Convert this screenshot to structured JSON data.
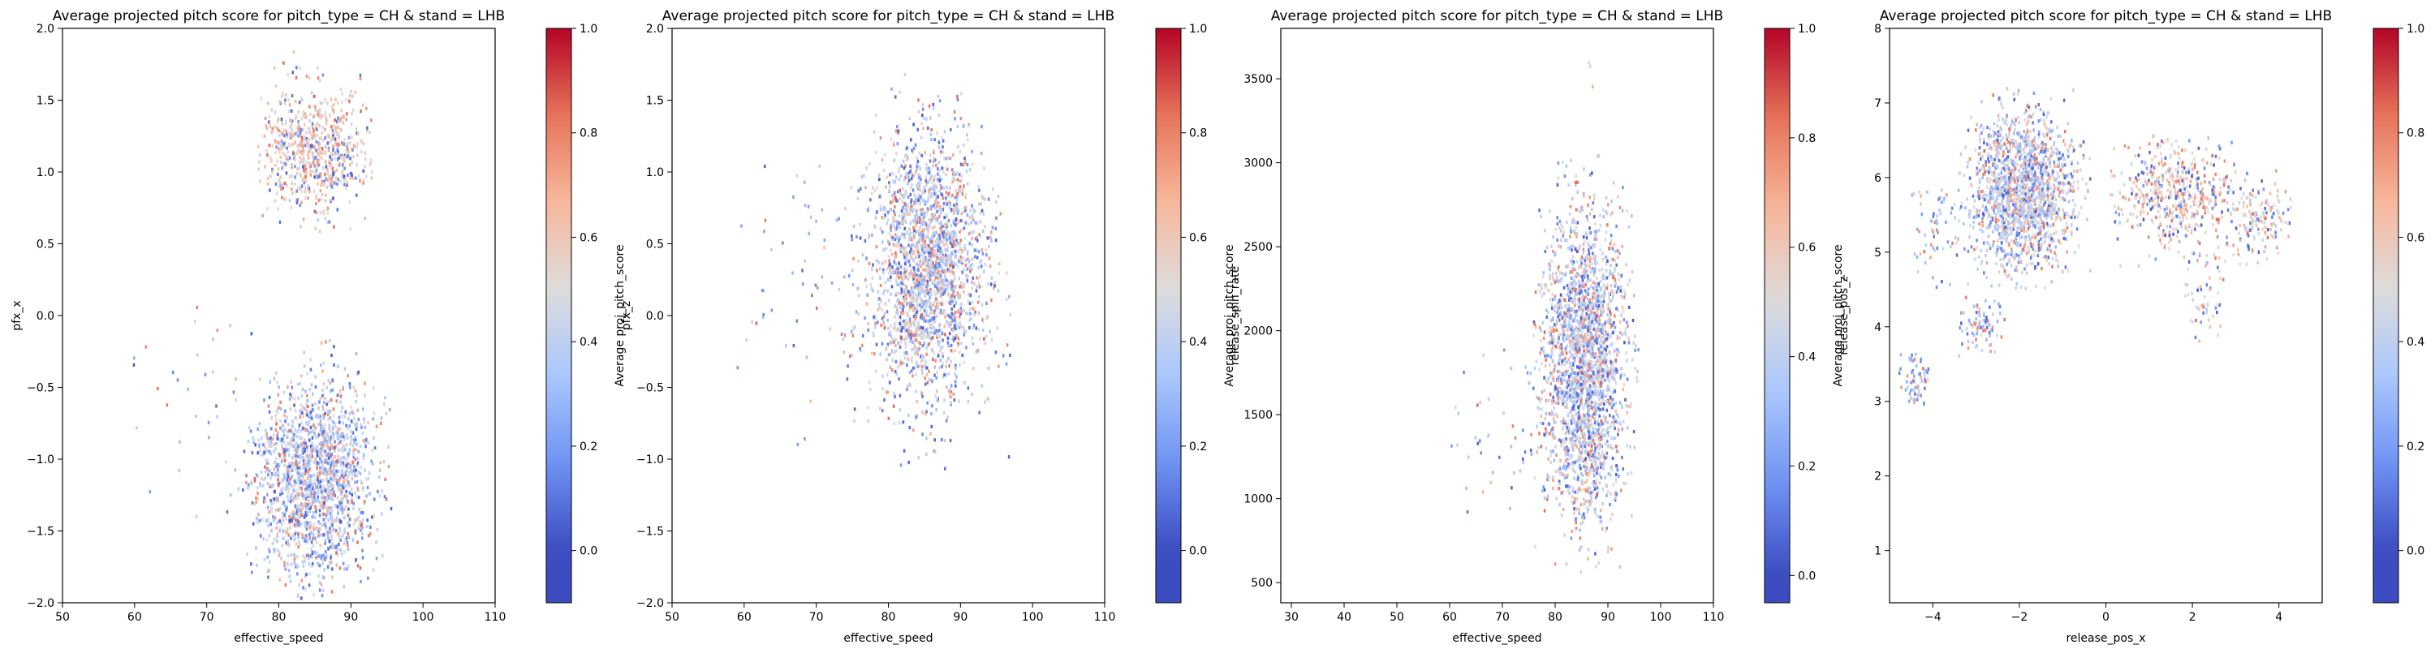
{
  "figure": {
    "background": "#ffffff"
  },
  "colormap": {
    "name": "coolwarm",
    "stops": [
      "#3b4cc0",
      "#6f92f3",
      "#aac7fd",
      "#dddcdc",
      "#f7b89c",
      "#e7745b",
      "#b40426"
    ]
  },
  "chart_data": [
    {
      "type": "heatmap",
      "title": "Average projected pitch score for pitch_type = CH & stand = LHB",
      "xlabel": "effective_speed",
      "ylabel": "pfx_x",
      "colorbar_label": "Average proj_pitch_score",
      "xlim": [
        50,
        110
      ],
      "ylim": [
        -2.0,
        2.0
      ],
      "xticks": [
        50,
        60,
        70,
        80,
        90,
        100,
        110
      ],
      "xtick_labels": [
        "50",
        "60",
        "70",
        "80",
        "90",
        "100",
        "110"
      ],
      "yticks": [
        -2.0,
        -1.5,
        -1.0,
        -0.5,
        0.0,
        0.5,
        1.0,
        1.5,
        2.0
      ],
      "ytick_labels": [
        "−2.0",
        "−1.5",
        "−1.0",
        "−0.5",
        "0.0",
        "0.5",
        "1.0",
        "1.5",
        "2.0"
      ],
      "cbar_range": [
        -0.1,
        1.0
      ],
      "cbar_ticks": [
        0.0,
        0.2,
        0.4,
        0.6,
        0.8,
        1.0
      ],
      "cbar_tick_labels": [
        "0.0",
        "0.2",
        "0.4",
        "0.6",
        "0.8",
        "1.0"
      ],
      "clusters": [
        {
          "center": [
            85,
            1.15
          ],
          "spread": [
            4,
            0.22
          ],
          "extent": [
            [
              77,
              93
            ],
            [
              0.55,
              1.95
            ]
          ],
          "count": 700,
          "mean_value": 0.55
        },
        {
          "center": [
            85,
            -1.15
          ],
          "spread": [
            4,
            0.35
          ],
          "extent": [
            [
              72,
              96
            ],
            [
              -2.0,
              -0.05
            ]
          ],
          "count": 1700,
          "mean_value": 0.4
        },
        {
          "center": [
            74,
            -0.6
          ],
          "spread": [
            8,
            0.5
          ],
          "extent": [
            [
              58,
              80
            ],
            [
              -1.4,
              0.1
            ]
          ],
          "count": 40,
          "mean_value": 0.3
        }
      ]
    },
    {
      "type": "heatmap",
      "title": "Average projected pitch score for pitch_type = CH & stand = LHB",
      "xlabel": "effective_speed",
      "ylabel": "pfx_z",
      "colorbar_label": "Average proj_pitch_score",
      "xlim": [
        50,
        110
      ],
      "ylim": [
        -2.0,
        2.0
      ],
      "xticks": [
        50,
        60,
        70,
        80,
        90,
        100,
        110
      ],
      "xtick_labels": [
        "50",
        "60",
        "70",
        "80",
        "90",
        "100",
        "110"
      ],
      "yticks": [
        -2.0,
        -1.5,
        -1.0,
        -0.5,
        0.0,
        0.5,
        1.0,
        1.5,
        2.0
      ],
      "ytick_labels": [
        "−2.0",
        "−1.5",
        "−1.0",
        "−0.5",
        "0.0",
        "0.5",
        "1.0",
        "1.5",
        "2.0"
      ],
      "cbar_range": [
        -0.1,
        1.0
      ],
      "cbar_ticks": [
        0.0,
        0.2,
        0.4,
        0.6,
        0.8,
        1.0
      ],
      "cbar_tick_labels": [
        "0.0",
        "0.2",
        "0.4",
        "0.6",
        "0.8",
        "1.0"
      ],
      "clusters": [
        {
          "center": [
            85.5,
            0.35
          ],
          "spread": [
            4,
            0.45
          ],
          "extent": [
            [
              73,
              97
            ],
            [
              -1.2,
              1.7
            ]
          ],
          "count": 2200,
          "mean_value": 0.42
        },
        {
          "center": [
            70,
            0.3
          ],
          "spread": [
            7,
            0.5
          ],
          "extent": [
            [
              58,
              78
            ],
            [
              -1.3,
              1.3
            ]
          ],
          "count": 60,
          "mean_value": 0.3
        }
      ]
    },
    {
      "type": "heatmap",
      "title": "Average projected pitch score for pitch_type = CH & stand = LHB",
      "xlabel": "effective_speed",
      "ylabel": "release_spin_rate",
      "colorbar_label": "Average proj_pitch_score",
      "xlim": [
        28,
        110
      ],
      "ylim": [
        380,
        3800
      ],
      "xticks": [
        30,
        40,
        50,
        60,
        70,
        80,
        90,
        100,
        110
      ],
      "xtick_labels": [
        "30",
        "40",
        "50",
        "60",
        "70",
        "80",
        "90",
        "100",
        "110"
      ],
      "yticks": [
        500,
        1000,
        1500,
        2000,
        2500,
        3000,
        3500
      ],
      "ytick_labels": [
        "500",
        "1000",
        "1500",
        "2000",
        "2500",
        "3000",
        "3500"
      ],
      "cbar_range": [
        -0.05,
        1.0
      ],
      "cbar_ticks": [
        0.0,
        0.2,
        0.4,
        0.6,
        0.8,
        1.0
      ],
      "cbar_tick_labels": [
        "0.0",
        "0.2",
        "0.4",
        "0.6",
        "0.8",
        "1.0"
      ],
      "clusters": [
        {
          "center": [
            85.5,
            1800
          ],
          "spread": [
            4,
            450
          ],
          "extent": [
            [
              75,
              96
            ],
            [
              550,
              3050
            ]
          ],
          "count": 2300,
          "mean_value": 0.42
        },
        {
          "center": [
            70,
            1300
          ],
          "spread": [
            7,
            300
          ],
          "extent": [
            [
              60,
              77
            ],
            [
              900,
              2000
            ]
          ],
          "count": 40,
          "mean_value": 0.35
        },
        {
          "center": [
            87,
            3500
          ],
          "spread": [
            0.5,
            80
          ],
          "extent": [
            [
              86,
              88
            ],
            [
              3400,
              3620
            ]
          ],
          "count": 3,
          "mean_value": 0.5
        }
      ]
    },
    {
      "type": "heatmap",
      "title": "Average projected pitch score for pitch_type = CH & stand = LHB",
      "xlabel": "release_pos_x",
      "ylabel": "release_pos_z",
      "colorbar_label": "Average proj_pitch_score",
      "xlim": [
        -5.0,
        5.0
      ],
      "ylim": [
        0.3,
        8.0
      ],
      "xticks": [
        -4,
        -2,
        0,
        2,
        4
      ],
      "xtick_labels": [
        "−4",
        "−2",
        "0",
        "2",
        "4"
      ],
      "yticks": [
        1,
        2,
        3,
        4,
        5,
        6,
        7,
        8
      ],
      "ytick_labels": [
        "1",
        "2",
        "3",
        "4",
        "5",
        "6",
        "7",
        "8"
      ],
      "cbar_range": [
        -0.1,
        1.0
      ],
      "cbar_ticks": [
        0.0,
        0.2,
        0.4,
        0.6,
        0.8,
        1.0
      ],
      "cbar_tick_labels": [
        "0.0",
        "0.2",
        "0.4",
        "0.6",
        "0.8",
        "1.0"
      ],
      "clusters": [
        {
          "center": [
            -1.9,
            5.8
          ],
          "spread": [
            0.6,
            0.55
          ],
          "extent": [
            [
              -3.5,
              -0.3
            ],
            [
              4.5,
              7.2
            ]
          ],
          "count": 1600,
          "mean_value": 0.42
        },
        {
          "center": [
            1.6,
            5.8
          ],
          "spread": [
            0.7,
            0.35
          ],
          "extent": [
            [
              0.1,
              3.2
            ],
            [
              4.8,
              6.6
            ]
          ],
          "count": 500,
          "mean_value": 0.55
        },
        {
          "center": [
            3.5,
            5.5
          ],
          "spread": [
            0.4,
            0.3
          ],
          "extent": [
            [
              2.8,
              4.3
            ],
            [
              4.7,
              6.2
            ]
          ],
          "count": 150,
          "mean_value": 0.5
        },
        {
          "center": [
            -2.9,
            4.0
          ],
          "spread": [
            0.3,
            0.2
          ],
          "extent": [
            [
              -3.4,
              -2.3
            ],
            [
              3.6,
              4.4
            ]
          ],
          "count": 80,
          "mean_value": 0.35
        },
        {
          "center": [
            -4.4,
            3.3
          ],
          "spread": [
            0.2,
            0.2
          ],
          "extent": [
            [
              -4.8,
              -3.9
            ],
            [
              2.9,
              3.8
            ]
          ],
          "count": 60,
          "mean_value": 0.3
        },
        {
          "center": [
            -4.0,
            5.4
          ],
          "spread": [
            0.3,
            0.4
          ],
          "extent": [
            [
              -4.5,
              -3.3
            ],
            [
              4.4,
              6.0
            ]
          ],
          "count": 60,
          "mean_value": 0.3
        },
        {
          "center": [
            2.3,
            4.5
          ],
          "spread": [
            0.3,
            0.4
          ],
          "extent": [
            [
              1.8,
              2.8
            ],
            [
              3.8,
              5.2
            ]
          ],
          "count": 60,
          "mean_value": 0.5
        }
      ]
    }
  ]
}
